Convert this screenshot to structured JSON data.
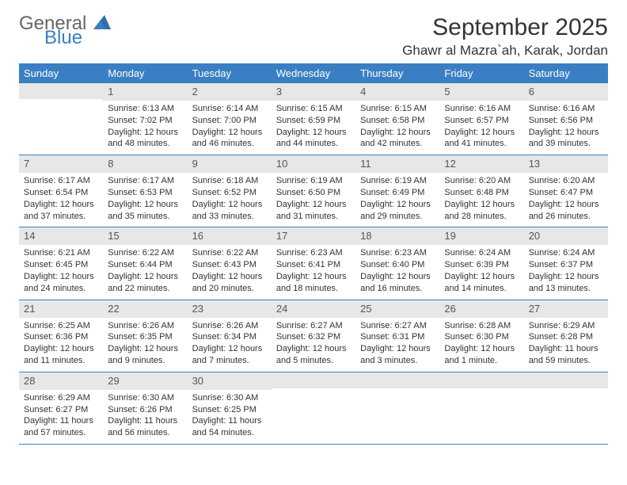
{
  "logo": {
    "line1": "General",
    "line2": "Blue"
  },
  "title": "September 2025",
  "location": "Ghawr al Mazra`ah, Karak, Jordan",
  "colors": {
    "header_bg": "#3a7fc4",
    "daynum_bg": "#e7e7e7",
    "rule": "#3a7fc4"
  },
  "fonts": {
    "title_size": 30,
    "location_size": 17,
    "dow_size": 13,
    "cell_size": 11
  },
  "dow": [
    "Sunday",
    "Monday",
    "Tuesday",
    "Wednesday",
    "Thursday",
    "Friday",
    "Saturday"
  ],
  "weeks": [
    [
      {
        "n": "",
        "sr": "",
        "ss": "",
        "d1": "",
        "d2": ""
      },
      {
        "n": "1",
        "sr": "Sunrise: 6:13 AM",
        "ss": "Sunset: 7:02 PM",
        "d1": "Daylight: 12 hours",
        "d2": "and 48 minutes."
      },
      {
        "n": "2",
        "sr": "Sunrise: 6:14 AM",
        "ss": "Sunset: 7:00 PM",
        "d1": "Daylight: 12 hours",
        "d2": "and 46 minutes."
      },
      {
        "n": "3",
        "sr": "Sunrise: 6:15 AM",
        "ss": "Sunset: 6:59 PM",
        "d1": "Daylight: 12 hours",
        "d2": "and 44 minutes."
      },
      {
        "n": "4",
        "sr": "Sunrise: 6:15 AM",
        "ss": "Sunset: 6:58 PM",
        "d1": "Daylight: 12 hours",
        "d2": "and 42 minutes."
      },
      {
        "n": "5",
        "sr": "Sunrise: 6:16 AM",
        "ss": "Sunset: 6:57 PM",
        "d1": "Daylight: 12 hours",
        "d2": "and 41 minutes."
      },
      {
        "n": "6",
        "sr": "Sunrise: 6:16 AM",
        "ss": "Sunset: 6:56 PM",
        "d1": "Daylight: 12 hours",
        "d2": "and 39 minutes."
      }
    ],
    [
      {
        "n": "7",
        "sr": "Sunrise: 6:17 AM",
        "ss": "Sunset: 6:54 PM",
        "d1": "Daylight: 12 hours",
        "d2": "and 37 minutes."
      },
      {
        "n": "8",
        "sr": "Sunrise: 6:17 AM",
        "ss": "Sunset: 6:53 PM",
        "d1": "Daylight: 12 hours",
        "d2": "and 35 minutes."
      },
      {
        "n": "9",
        "sr": "Sunrise: 6:18 AM",
        "ss": "Sunset: 6:52 PM",
        "d1": "Daylight: 12 hours",
        "d2": "and 33 minutes."
      },
      {
        "n": "10",
        "sr": "Sunrise: 6:19 AM",
        "ss": "Sunset: 6:50 PM",
        "d1": "Daylight: 12 hours",
        "d2": "and 31 minutes."
      },
      {
        "n": "11",
        "sr": "Sunrise: 6:19 AM",
        "ss": "Sunset: 6:49 PM",
        "d1": "Daylight: 12 hours",
        "d2": "and 29 minutes."
      },
      {
        "n": "12",
        "sr": "Sunrise: 6:20 AM",
        "ss": "Sunset: 6:48 PM",
        "d1": "Daylight: 12 hours",
        "d2": "and 28 minutes."
      },
      {
        "n": "13",
        "sr": "Sunrise: 6:20 AM",
        "ss": "Sunset: 6:47 PM",
        "d1": "Daylight: 12 hours",
        "d2": "and 26 minutes."
      }
    ],
    [
      {
        "n": "14",
        "sr": "Sunrise: 6:21 AM",
        "ss": "Sunset: 6:45 PM",
        "d1": "Daylight: 12 hours",
        "d2": "and 24 minutes."
      },
      {
        "n": "15",
        "sr": "Sunrise: 6:22 AM",
        "ss": "Sunset: 6:44 PM",
        "d1": "Daylight: 12 hours",
        "d2": "and 22 minutes."
      },
      {
        "n": "16",
        "sr": "Sunrise: 6:22 AM",
        "ss": "Sunset: 6:43 PM",
        "d1": "Daylight: 12 hours",
        "d2": "and 20 minutes."
      },
      {
        "n": "17",
        "sr": "Sunrise: 6:23 AM",
        "ss": "Sunset: 6:41 PM",
        "d1": "Daylight: 12 hours",
        "d2": "and 18 minutes."
      },
      {
        "n": "18",
        "sr": "Sunrise: 6:23 AM",
        "ss": "Sunset: 6:40 PM",
        "d1": "Daylight: 12 hours",
        "d2": "and 16 minutes."
      },
      {
        "n": "19",
        "sr": "Sunrise: 6:24 AM",
        "ss": "Sunset: 6:39 PM",
        "d1": "Daylight: 12 hours",
        "d2": "and 14 minutes."
      },
      {
        "n": "20",
        "sr": "Sunrise: 6:24 AM",
        "ss": "Sunset: 6:37 PM",
        "d1": "Daylight: 12 hours",
        "d2": "and 13 minutes."
      }
    ],
    [
      {
        "n": "21",
        "sr": "Sunrise: 6:25 AM",
        "ss": "Sunset: 6:36 PM",
        "d1": "Daylight: 12 hours",
        "d2": "and 11 minutes."
      },
      {
        "n": "22",
        "sr": "Sunrise: 6:26 AM",
        "ss": "Sunset: 6:35 PM",
        "d1": "Daylight: 12 hours",
        "d2": "and 9 minutes."
      },
      {
        "n": "23",
        "sr": "Sunrise: 6:26 AM",
        "ss": "Sunset: 6:34 PM",
        "d1": "Daylight: 12 hours",
        "d2": "and 7 minutes."
      },
      {
        "n": "24",
        "sr": "Sunrise: 6:27 AM",
        "ss": "Sunset: 6:32 PM",
        "d1": "Daylight: 12 hours",
        "d2": "and 5 minutes."
      },
      {
        "n": "25",
        "sr": "Sunrise: 6:27 AM",
        "ss": "Sunset: 6:31 PM",
        "d1": "Daylight: 12 hours",
        "d2": "and 3 minutes."
      },
      {
        "n": "26",
        "sr": "Sunrise: 6:28 AM",
        "ss": "Sunset: 6:30 PM",
        "d1": "Daylight: 12 hours",
        "d2": "and 1 minute."
      },
      {
        "n": "27",
        "sr": "Sunrise: 6:29 AM",
        "ss": "Sunset: 6:28 PM",
        "d1": "Daylight: 11 hours",
        "d2": "and 59 minutes."
      }
    ],
    [
      {
        "n": "28",
        "sr": "Sunrise: 6:29 AM",
        "ss": "Sunset: 6:27 PM",
        "d1": "Daylight: 11 hours",
        "d2": "and 57 minutes."
      },
      {
        "n": "29",
        "sr": "Sunrise: 6:30 AM",
        "ss": "Sunset: 6:26 PM",
        "d1": "Daylight: 11 hours",
        "d2": "and 56 minutes."
      },
      {
        "n": "30",
        "sr": "Sunrise: 6:30 AM",
        "ss": "Sunset: 6:25 PM",
        "d1": "Daylight: 11 hours",
        "d2": "and 54 minutes."
      },
      {
        "n": "",
        "sr": "",
        "ss": "",
        "d1": "",
        "d2": ""
      },
      {
        "n": "",
        "sr": "",
        "ss": "",
        "d1": "",
        "d2": ""
      },
      {
        "n": "",
        "sr": "",
        "ss": "",
        "d1": "",
        "d2": ""
      },
      {
        "n": "",
        "sr": "",
        "ss": "",
        "d1": "",
        "d2": ""
      }
    ]
  ]
}
